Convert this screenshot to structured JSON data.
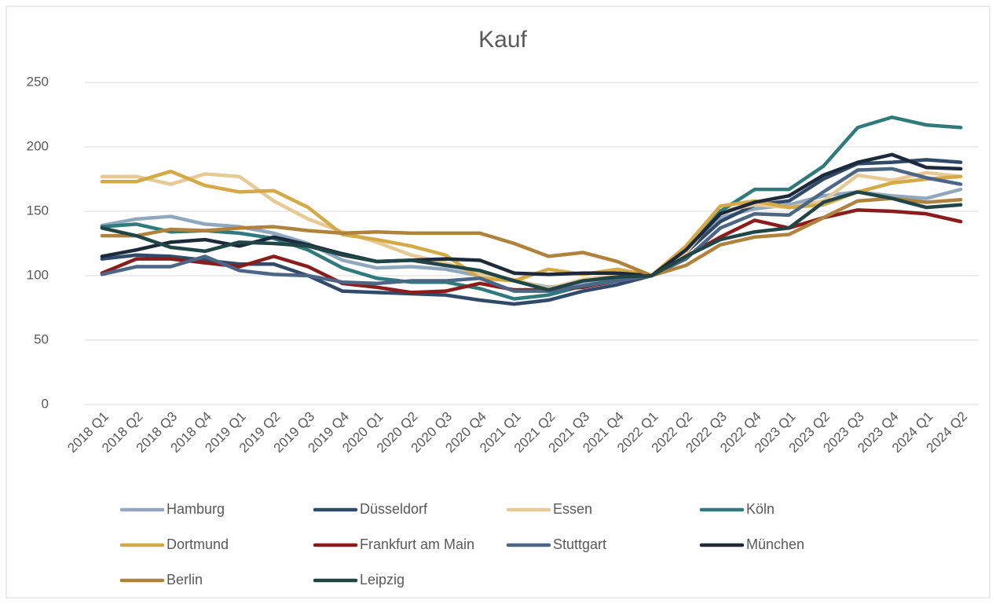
{
  "chart_data": {
    "type": "line",
    "title": "Kauf",
    "categories": [
      "2018 Q1",
      "2018 Q2",
      "2018 Q3",
      "2018 Q4",
      "2019 Q1",
      "2019 Q2",
      "2019 Q3",
      "2019 Q4",
      "2020 Q1",
      "2020 Q2",
      "2020 Q3",
      "2020 Q4",
      "2021 Q1",
      "2021 Q2",
      "2021 Q3",
      "2021 Q4",
      "2022 Q1",
      "2022 Q2",
      "2022 Q3",
      "2022 Q4",
      "2023 Q1",
      "2023 Q2",
      "2023 Q3",
      "2023 Q4",
      "2024 Q1",
      "2024 Q2"
    ],
    "ylim": [
      0,
      250
    ],
    "yticks": [
      0,
      50,
      100,
      150,
      200,
      250
    ],
    "grid": true,
    "series": [
      {
        "name": "Hamburg",
        "color": "#8FA8C0",
        "values": [
          139,
          144,
          146,
          140,
          138,
          133,
          125,
          112,
          106,
          107,
          105,
          100,
          96,
          91,
          94,
          97,
          100,
          120,
          145,
          152,
          155,
          162,
          165,
          162,
          160,
          167
        ]
      },
      {
        "name": "Düsseldorf",
        "color": "#2F4A6A",
        "values": [
          113,
          116,
          115,
          112,
          109,
          109,
          100,
          88,
          87,
          86,
          85,
          81,
          78,
          81,
          88,
          93,
          100,
          118,
          142,
          155,
          158,
          175,
          187,
          188,
          190,
          188
        ]
      },
      {
        "name": "Essen",
        "color": "#E8C994",
        "values": [
          177,
          177,
          171,
          179,
          177,
          158,
          144,
          134,
          126,
          116,
          110,
          101,
          97,
          90,
          97,
          100,
          100,
          118,
          150,
          155,
          153,
          158,
          178,
          174,
          180,
          177
        ]
      },
      {
        "name": "Köln",
        "color": "#2E7A7D",
        "values": [
          138,
          140,
          134,
          135,
          133,
          129,
          120,
          106,
          98,
          95,
          95,
          90,
          82,
          85,
          92,
          97,
          100,
          122,
          150,
          167,
          167,
          185,
          215,
          223,
          217,
          215
        ]
      },
      {
        "name": "Dortmund",
        "color": "#D4A946",
        "values": [
          173,
          173,
          181,
          170,
          165,
          166,
          153,
          132,
          128,
          123,
          116,
          98,
          96,
          105,
          101,
          105,
          100,
          123,
          154,
          158,
          153,
          155,
          165,
          172,
          175,
          177
        ]
      },
      {
        "name": "Frankfurt am Main",
        "color": "#8C1C1C",
        "values": [
          102,
          113,
          113,
          110,
          107,
          115,
          107,
          94,
          91,
          87,
          88,
          94,
          89,
          89,
          91,
          96,
          100,
          115,
          130,
          143,
          137,
          145,
          151,
          150,
          148,
          142
        ]
      },
      {
        "name": "Stuttgart",
        "color": "#4B6686",
        "values": [
          101,
          107,
          107,
          115,
          104,
          101,
          100,
          95,
          94,
          96,
          96,
          98,
          88,
          88,
          92,
          96,
          100,
          113,
          137,
          148,
          147,
          165,
          182,
          183,
          176,
          171
        ]
      },
      {
        "name": "München",
        "color": "#1C2A3B",
        "values": [
          115,
          120,
          126,
          128,
          123,
          130,
          124,
          117,
          111,
          112,
          113,
          112,
          102,
          101,
          102,
          102,
          100,
          120,
          148,
          157,
          162,
          178,
          188,
          194,
          184,
          183
        ]
      },
      {
        "name": "Berlin",
        "color": "#B0823C",
        "values": [
          131,
          131,
          136,
          135,
          137,
          138,
          135,
          133,
          134,
          133,
          133,
          133,
          125,
          115,
          118,
          111,
          100,
          108,
          124,
          130,
          132,
          145,
          158,
          160,
          157,
          159
        ]
      },
      {
        "name": "Leipzig",
        "color": "#1F4547",
        "values": [
          137,
          131,
          122,
          119,
          126,
          125,
          123,
          116,
          111,
          112,
          108,
          104,
          96,
          89,
          96,
          99,
          100,
          115,
          128,
          134,
          137,
          157,
          165,
          160,
          153,
          155
        ]
      }
    ]
  }
}
